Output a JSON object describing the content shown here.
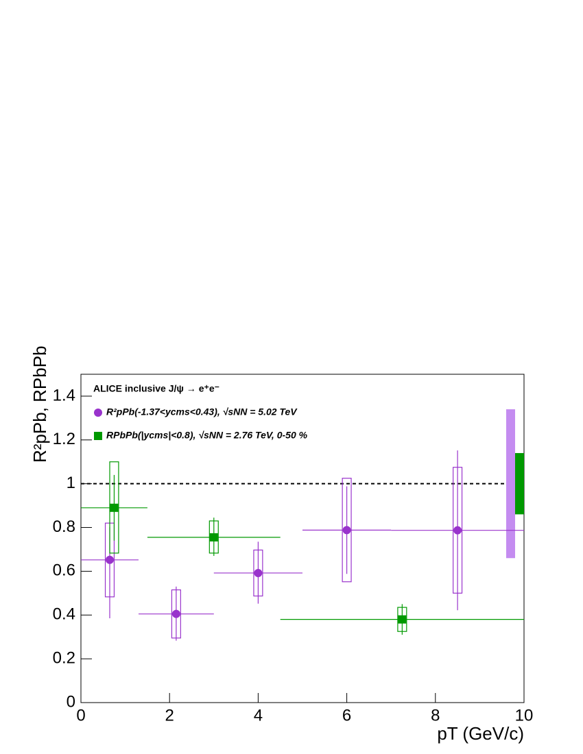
{
  "chart_data": {
    "type": "errorbar",
    "annotation": "ALICE inclusive J/ψ → e⁺e⁻",
    "x_label": "pT (GeV/c)",
    "y_label": "R²pPb, RPbPb",
    "xlim": [
      0,
      10
    ],
    "xticks": [
      0,
      2,
      4,
      6,
      8,
      10
    ],
    "ylim": [
      0,
      1.5
    ],
    "yticks": [
      0,
      0.2,
      0.4,
      0.6,
      0.8,
      1,
      1.2,
      1.4
    ],
    "reference_line": 1,
    "legend": "upper left",
    "series": [
      {
        "name": "R²pPb(-1.37<ycms<0.43), √sNN = 5.02 TeV",
        "color": "#9933cc",
        "global_color": "#c48cf0",
        "marker": "circle",
        "x": [
          0.65,
          2.15,
          4.0,
          6.0,
          8.5
        ],
        "x_low": [
          0,
          1.3,
          3.0,
          5.0,
          7.0
        ],
        "x_high": [
          1.3,
          3.0,
          5.0,
          7.0,
          10
        ],
        "values": [
          0.652,
          0.405,
          0.592,
          0.788,
          0.787
        ],
        "stat_err_low": [
          0.267,
          0.122,
          0.14,
          0.2,
          0.365
        ],
        "stat_err_high": [
          0.15,
          0.125,
          0.143,
          0.2,
          0.365
        ],
        "sys_err_low": [
          0.169,
          0.11,
          0.105,
          0.236,
          0.287
        ],
        "sys_err_high": [
          0.168,
          0.11,
          0.105,
          0.237,
          0.288
        ],
        "global_err": 0.34
      },
      {
        "name": "RPbPb(|ycms|<0.8), √sNN = 2.76 TeV, 0-50 %",
        "color": "#009900",
        "global_color": "#009900",
        "marker": "square",
        "x": [
          0.75,
          3.0,
          7.25
        ],
        "x_low": [
          0,
          1.5,
          4.5
        ],
        "x_high": [
          1.5,
          4.5,
          10
        ],
        "values": [
          0.89,
          0.755,
          0.38
        ],
        "stat_err_low": [
          0.15,
          0.085,
          0.07
        ],
        "stat_err_high": [
          0.15,
          0.09,
          0.07
        ],
        "sys_err_low": [
          0.207,
          0.072,
          0.055
        ],
        "sys_err_high": [
          0.21,
          0.075,
          0.055
        ],
        "global_err": 0.14
      }
    ]
  }
}
